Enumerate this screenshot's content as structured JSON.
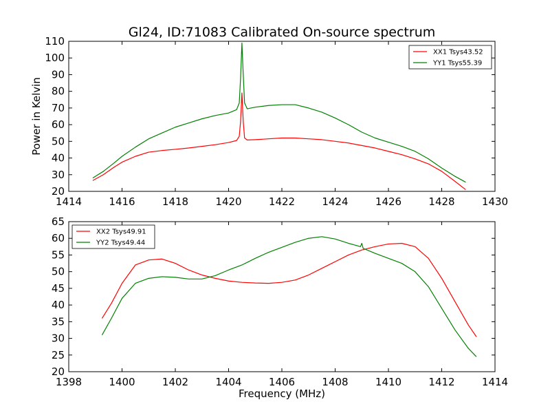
{
  "chart_data": [
    {
      "type": "line",
      "title": "Gl24, ID:71083 Calibrated On-source spectrum",
      "xlabel": "",
      "ylabel": "Power in Kelvin",
      "xlim": [
        1414,
        1430
      ],
      "ylim": [
        20,
        110
      ],
      "xticks": [
        1414,
        1416,
        1418,
        1420,
        1422,
        1424,
        1426,
        1428,
        1430
      ],
      "yticks": [
        20,
        30,
        40,
        50,
        60,
        70,
        80,
        90,
        100,
        110
      ],
      "legend_loc": "upper right",
      "series": [
        {
          "name": "XX1 Tsys43.52",
          "color": "#ff0000",
          "x": [
            1414.9,
            1415.3,
            1415.7,
            1416.0,
            1416.5,
            1417.0,
            1417.5,
            1418.0,
            1418.5,
            1419.0,
            1419.5,
            1420.0,
            1420.3,
            1420.4,
            1420.45,
            1420.5,
            1420.55,
            1420.6,
            1420.7,
            1421.0,
            1421.5,
            1422.0,
            1422.5,
            1423.0,
            1423.5,
            1424.0,
            1424.5,
            1425.0,
            1425.5,
            1426.0,
            1426.5,
            1427.0,
            1427.5,
            1428.0,
            1428.5,
            1428.9
          ],
          "values": [
            26.5,
            30,
            34.5,
            37.5,
            41,
            43.5,
            44.5,
            45.2,
            46,
            47,
            48,
            49.3,
            50.5,
            53,
            62,
            79,
            62,
            52,
            50.8,
            51,
            51.5,
            52,
            52,
            51.5,
            51,
            50,
            49,
            47.5,
            46,
            44,
            42,
            39.5,
            36.5,
            32,
            26,
            21
          ]
        },
        {
          "name": "YY1 Tsys55.39",
          "color": "#008000",
          "x": [
            1414.9,
            1415.3,
            1415.7,
            1416.0,
            1416.5,
            1417.0,
            1417.5,
            1418.0,
            1418.5,
            1419.0,
            1419.5,
            1420.0,
            1420.3,
            1420.4,
            1420.45,
            1420.5,
            1420.55,
            1420.6,
            1420.7,
            1421.0,
            1421.5,
            1422.0,
            1422.5,
            1423.0,
            1423.5,
            1424.0,
            1424.5,
            1425.0,
            1425.5,
            1426.0,
            1426.5,
            1427.0,
            1427.5,
            1428.0,
            1428.5,
            1428.9
          ],
          "values": [
            28,
            32,
            37,
            41,
            46.5,
            51.5,
            55,
            58.5,
            61,
            63.5,
            65.5,
            67,
            69,
            73,
            88,
            109,
            90,
            73,
            69.5,
            70.5,
            71.5,
            72,
            72,
            70,
            67.5,
            64,
            60,
            55.5,
            52,
            49.5,
            47,
            44,
            39.5,
            34,
            29,
            25.5
          ]
        }
      ]
    },
    {
      "type": "line",
      "title": "",
      "xlabel": "Frequency (MHz)",
      "ylabel": "",
      "xlim": [
        1398,
        1414
      ],
      "ylim": [
        20,
        65
      ],
      "xticks": [
        1398,
        1400,
        1402,
        1404,
        1406,
        1408,
        1410,
        1412,
        1414
      ],
      "yticks": [
        20,
        25,
        30,
        35,
        40,
        45,
        50,
        55,
        60,
        65
      ],
      "legend_loc": "upper left",
      "series": [
        {
          "name": "XX2 Tsys49.91",
          "color": "#ff0000",
          "x": [
            1399.25,
            1399.6,
            1400.0,
            1400.5,
            1401.0,
            1401.5,
            1402.0,
            1402.5,
            1403.0,
            1403.5,
            1404.0,
            1404.5,
            1405.0,
            1405.5,
            1406.0,
            1406.5,
            1407.0,
            1407.5,
            1408.0,
            1408.5,
            1409.0,
            1409.5,
            1410.0,
            1410.5,
            1411.0,
            1411.5,
            1412.0,
            1412.5,
            1413.0,
            1413.3
          ],
          "values": [
            36,
            40.5,
            46.5,
            52,
            53.5,
            53.8,
            52.5,
            50.5,
            49,
            48,
            47.2,
            46.8,
            46.6,
            46.5,
            46.8,
            47.5,
            49,
            51,
            53,
            55,
            56.5,
            57.5,
            58.3,
            58.5,
            57.5,
            54,
            48,
            41,
            34,
            30.5
          ]
        },
        {
          "name": "YY2 Tsys49.44",
          "color": "#008000",
          "x": [
            1399.25,
            1399.6,
            1400.0,
            1400.5,
            1401.0,
            1401.5,
            1402.0,
            1402.5,
            1403.0,
            1403.5,
            1404.0,
            1404.5,
            1405.0,
            1405.5,
            1406.0,
            1406.5,
            1407.0,
            1407.5,
            1408.0,
            1408.5,
            1408.95,
            1409.0,
            1409.05,
            1409.5,
            1410.0,
            1410.5,
            1411.0,
            1411.5,
            1412.0,
            1412.5,
            1413.0,
            1413.3
          ],
          "values": [
            31,
            36,
            42,
            46.5,
            48,
            48.5,
            48.3,
            47.8,
            47.8,
            48.8,
            50.5,
            52,
            54,
            55.8,
            57.3,
            58.8,
            60,
            60.5,
            59.8,
            58.5,
            57.5,
            58.5,
            57,
            55.5,
            54,
            52.5,
            50,
            45.5,
            39,
            32.5,
            27,
            24.5
          ]
        }
      ]
    }
  ]
}
